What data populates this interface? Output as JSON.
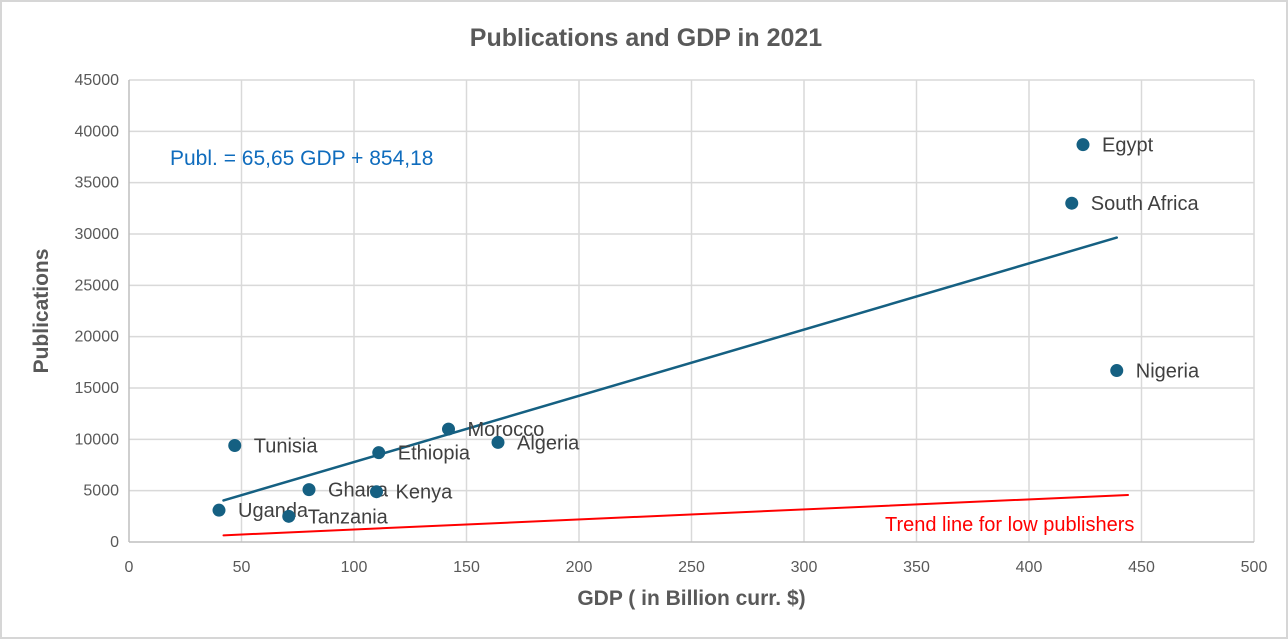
{
  "chart_data": {
    "type": "scatter",
    "title": "Publications and GDP in 2021",
    "xlabel": "GDP ( in Billion curr. $)",
    "ylabel": "Publications",
    "xlim": [
      0,
      500
    ],
    "ylim": [
      0,
      45000
    ],
    "x_ticks": [
      0,
      50,
      100,
      150,
      200,
      250,
      300,
      350,
      400,
      450,
      500
    ],
    "y_ticks": [
      0,
      5000,
      10000,
      15000,
      20000,
      25000,
      30000,
      35000,
      40000,
      45000
    ],
    "grid": true,
    "legend": "none",
    "points": [
      {
        "label": "Egypt",
        "x": 424,
        "y": 38700
      },
      {
        "label": "South Africa",
        "x": 419,
        "y": 33000
      },
      {
        "label": "Nigeria",
        "x": 439,
        "y": 16700
      },
      {
        "label": "Morocco",
        "x": 142,
        "y": 11000
      },
      {
        "label": "Algeria",
        "x": 164,
        "y": 9700
      },
      {
        "label": "Tunisia",
        "x": 47,
        "y": 9400
      },
      {
        "label": "Ethiopia",
        "x": 111,
        "y": 8700
      },
      {
        "label": "Ghana",
        "x": 80,
        "y": 5100
      },
      {
        "label": "Kenya",
        "x": 110,
        "y": 4900
      },
      {
        "label": "Uganda",
        "x": 40,
        "y": 3100
      },
      {
        "label": "Tanzania",
        "x": 71,
        "y": 2500
      }
    ],
    "trendlines": [
      {
        "name": "main",
        "color": "#156082",
        "width": 2.5,
        "x1": 42,
        "y1": 4050,
        "x2": 439,
        "y2": 29650
      },
      {
        "name": "low-publishers",
        "color": "#ff0000",
        "width": 2,
        "x1": 42,
        "y1": 650,
        "x2": 444,
        "y2": 4580
      }
    ],
    "equation": "Publ. = 65,65 GDP + 854,18",
    "red_trend_label": "Trend line for low publishers",
    "colors": {
      "point": "#156082",
      "point_label_text": "#404040",
      "equation_text": "#0f6cbd",
      "red": "#ff0000",
      "grid": "#d9d9d9",
      "axis": "#bfbfbf",
      "tick_text": "#595959",
      "title_text": "#595959"
    }
  }
}
